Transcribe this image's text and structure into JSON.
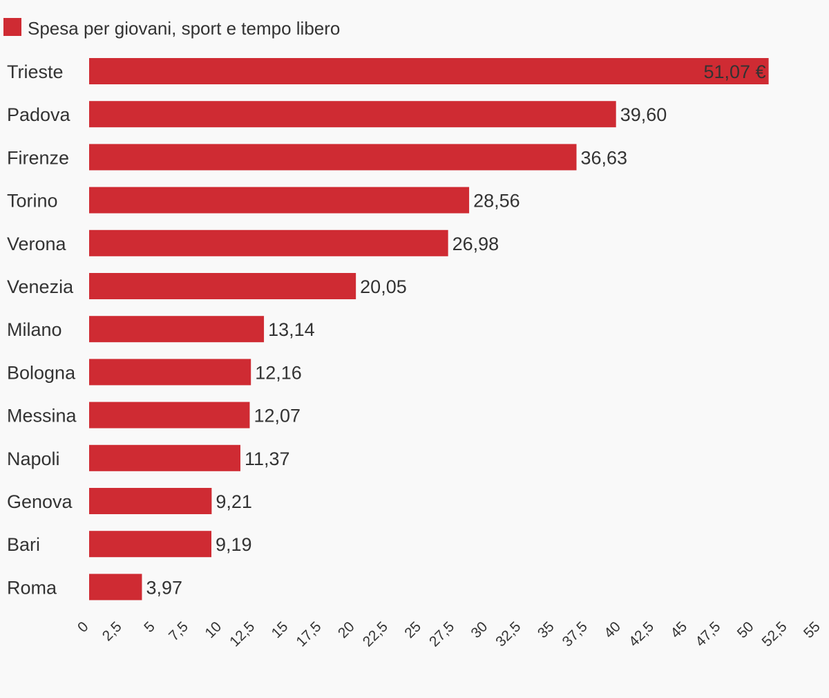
{
  "chart_data": {
    "type": "bar",
    "orientation": "horizontal",
    "categories": [
      "Trieste",
      "Padova",
      "Firenze",
      "Torino",
      "Verona",
      "Venezia",
      "Milano",
      "Bologna",
      "Messina",
      "Napoli",
      "Genova",
      "Bari",
      "Roma"
    ],
    "series": [
      {
        "name": "Spesa per giovani, sport e tempo libero",
        "color": "#cf2b33",
        "values": [
          51.07,
          39.6,
          36.63,
          28.56,
          26.98,
          20.05,
          13.14,
          12.16,
          12.07,
          11.37,
          9.21,
          9.19,
          3.97
        ]
      }
    ],
    "value_labels": [
      "51,07 €",
      "39,60",
      "36,63",
      "28,56",
      "26,98",
      "20,05",
      "13,14",
      "12,16",
      "12,07",
      "11,37",
      "9,21",
      "9,19",
      "3,97"
    ],
    "xlim": [
      0,
      55
    ],
    "x_ticks": [
      "0",
      "2,5",
      "5",
      "7,5",
      "10",
      "12,5",
      "15",
      "17,5",
      "20",
      "22,5",
      "25",
      "27,5",
      "30",
      "32,5",
      "35",
      "37,5",
      "40",
      "42,5",
      "45",
      "47,5",
      "50",
      "52,5",
      "55"
    ],
    "legend_position": "top-left",
    "grid": false
  }
}
